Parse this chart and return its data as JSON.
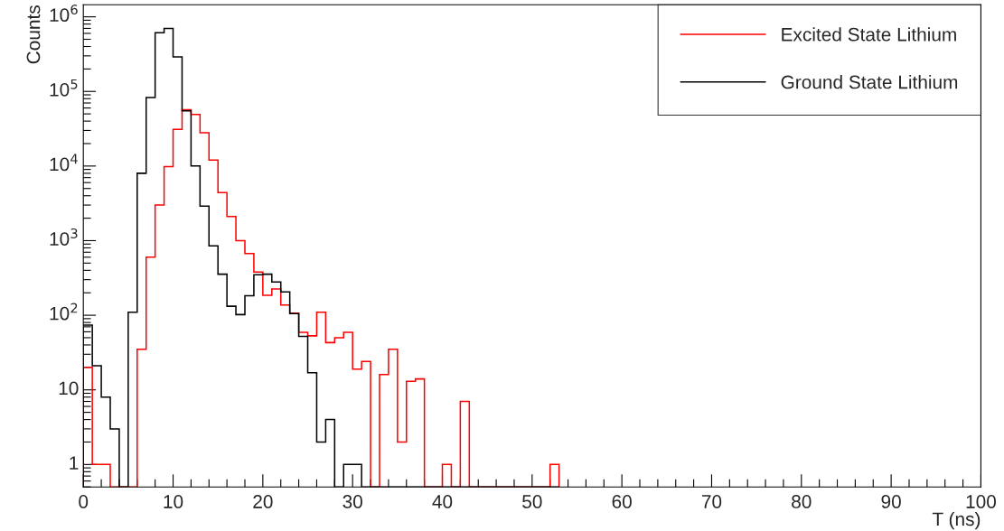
{
  "chart_data": {
    "type": "histogram",
    "xlabel": "T (ns)",
    "ylabel": "Counts",
    "log": "y",
    "legend": "top right",
    "grid": false,
    "bins": [
      0,
      1,
      2,
      3,
      4,
      5,
      6,
      7,
      8,
      9,
      10,
      11,
      12,
      13,
      14,
      15,
      16,
      17,
      18,
      19,
      20,
      21,
      22,
      23,
      24,
      25,
      26,
      27,
      28,
      29,
      30,
      31,
      32,
      33,
      34,
      35,
      36,
      37,
      38,
      39,
      40,
      41,
      42,
      43,
      44,
      45,
      46,
      47,
      48,
      49,
      50,
      51,
      52,
      53
    ],
    "series": [
      {
        "name": "Excited State Lithium",
        "color": "#ff0000",
        "values": [
          20,
          1,
          1,
          null,
          null,
          null,
          35,
          600,
          3000,
          9800,
          31000,
          57000,
          49000,
          28000,
          12000,
          4400,
          2100,
          1000,
          670,
          380,
          185,
          225,
          137,
          107,
          59,
          53,
          110,
          43,
          50,
          59,
          19,
          24,
          null,
          16,
          35,
          2,
          13,
          14,
          null,
          null,
          1,
          null,
          7,
          null,
          null,
          null,
          null,
          null,
          null,
          null,
          null,
          null,
          1
        ]
      },
      {
        "name": "Ground State Lithium",
        "color": "#000000",
        "values": [
          74,
          21,
          8,
          3,
          null,
          110,
          8000,
          83000,
          610000,
          700000,
          290000,
          55000,
          10000,
          2900,
          850,
          355,
          132,
          102,
          183,
          348,
          355,
          280,
          205,
          105,
          52,
          17,
          2,
          4,
          null,
          1,
          1,
          null,
          null,
          null,
          null,
          null,
          null,
          null,
          null,
          null,
          null,
          null,
          null,
          null,
          null,
          null,
          null,
          null,
          null,
          null,
          null,
          null,
          null
        ]
      }
    ],
    "xlim": [
      0,
      100
    ],
    "xticks": [
      0,
      10,
      20,
      30,
      40,
      50,
      60,
      70,
      80,
      90,
      100
    ],
    "ylim": [
      0.5,
      1450000
    ],
    "yticks": [
      {
        "value": 1,
        "label": "1"
      },
      {
        "value": 10,
        "label": "10"
      },
      {
        "value": 100,
        "label": "10$^{2}$"
      },
      {
        "value": 1000,
        "label": "10$^{3}$"
      },
      {
        "value": 10000,
        "label": "10$^{4}$"
      },
      {
        "value": 100000,
        "label": "10$^{5}$"
      },
      {
        "value": 1000000,
        "label": "10$^{6}$"
      }
    ]
  }
}
